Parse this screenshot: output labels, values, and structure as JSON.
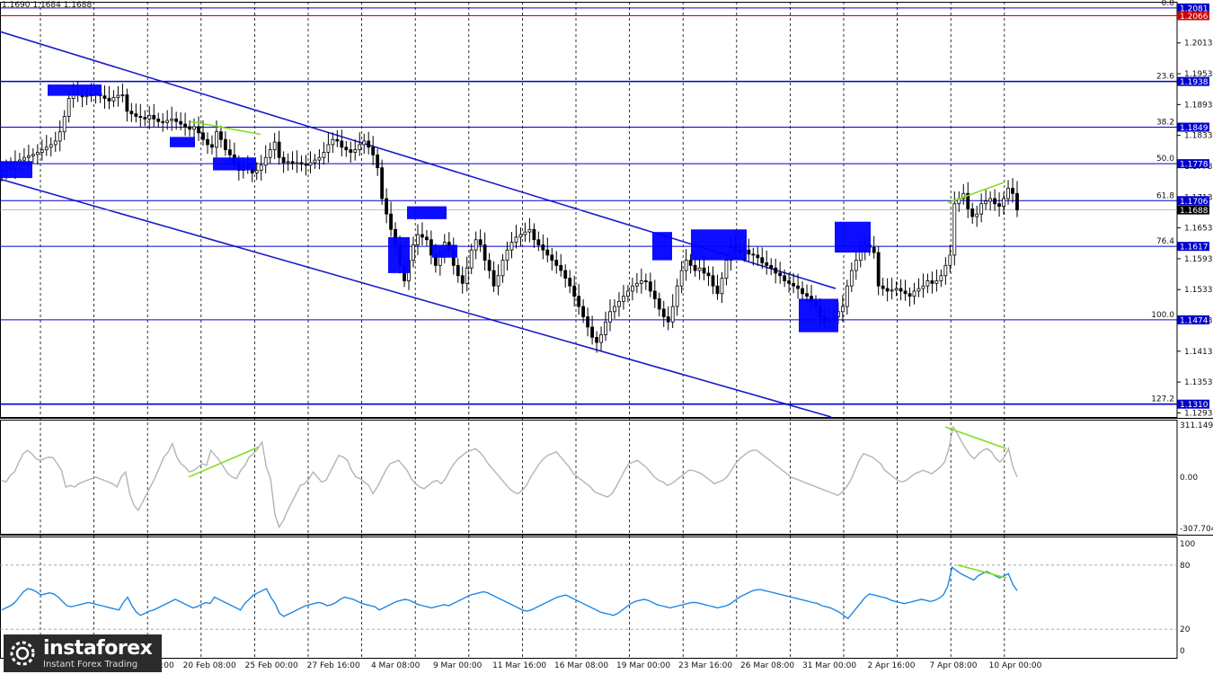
{
  "header": {
    "ohlc": "1.1690 1.1684 1.1688"
  },
  "brand": {
    "name": "instaforex",
    "tagline": "Instant Forex Trading",
    "logo_icon": "gear-logo-icon"
  },
  "colors": {
    "level": "#0000cc",
    "channel": "#1a1acc",
    "box": "#0000ff",
    "divergence": "#7fe020",
    "cci": "#b4b4b4",
    "rsi": "#1e88e5",
    "red_line": "#cc0000",
    "grid": "#000000"
  },
  "chart_data": [
    {
      "type": "candlestick",
      "title": "",
      "x_labels": [
        "17 Feb 16:00",
        "20 Feb 08:00",
        "25 Feb 00:00",
        "27 Feb 16:00",
        "4 Mar 08:00",
        "9 Mar 00:00",
        "11 Mar 16:00",
        "16 Mar 08:00",
        "19 Mar 00:00",
        "23 Mar 16:00",
        "26 Mar 08:00",
        "31 Mar 00:00",
        "2 Apr 16:00",
        "7 Apr 08:00",
        "10 Apr 00:00"
      ],
      "y_ticks": [
        "1.2013",
        "1.1953",
        "1.1893",
        "1.1833",
        "1.1773",
        "1.1713",
        "1.1653",
        "1.1593",
        "1.1533",
        "1.1473",
        "1.1413",
        "1.1353",
        "1.1293"
      ],
      "ylim": [
        1.1285,
        1.2093
      ],
      "current_price": "1.1688",
      "fibo_levels": [
        {
          "ratio": "0.0",
          "price": "1.2081"
        },
        {
          "ratio": "",
          "price": "1.2066"
        },
        {
          "ratio": "23.6",
          "price": "1.1938"
        },
        {
          "ratio": "38.2",
          "price": "1.1849"
        },
        {
          "ratio": "50.0",
          "price": "1.1778"
        },
        {
          "ratio": "61.8",
          "price": "1.1706"
        },
        {
          "ratio": "76.4",
          "price": "1.1617"
        },
        {
          "ratio": "100.0",
          "price": "1.1474"
        },
        {
          "ratio": "127.2",
          "price": "1.1310"
        }
      ],
      "close_path": [
        1.1765,
        1.177,
        1.1768,
        1.178,
        1.1785,
        1.179,
        1.1793,
        1.1796,
        1.18,
        1.1805,
        1.181,
        1.1815,
        1.1822,
        1.184,
        1.187,
        1.1905,
        1.1915,
        1.1912,
        1.1908,
        1.191,
        1.1913,
        1.1915,
        1.191,
        1.1905,
        1.19,
        1.1907,
        1.1911,
        1.1912,
        1.188,
        1.1875,
        1.187,
        1.1868,
        1.1865,
        1.1872,
        1.1865,
        1.186,
        1.1858,
        1.1862,
        1.1865,
        1.186,
        1.1855,
        1.185,
        1.1845,
        1.185,
        1.1838,
        1.1825,
        1.1815,
        1.181,
        1.184,
        1.1825,
        1.1805,
        1.1795,
        1.178,
        1.1765,
        1.1772,
        1.177,
        1.176,
        1.1765,
        1.1775,
        1.179,
        1.1805,
        1.182,
        1.179,
        1.178,
        1.1782,
        1.1778,
        1.178,
        1.1777,
        1.1775,
        1.178,
        1.1785,
        1.179,
        1.18,
        1.1815,
        1.1825,
        1.1822,
        1.181,
        1.1805,
        1.18,
        1.1805,
        1.1815,
        1.1822,
        1.181,
        1.1795,
        1.177,
        1.171,
        1.168,
        1.165,
        1.162,
        1.158,
        1.155,
        1.159,
        1.162,
        1.164,
        1.1635,
        1.163,
        1.16,
        1.158,
        1.16,
        1.1625,
        1.161,
        1.158,
        1.156,
        1.1545,
        1.1575,
        1.161,
        1.163,
        1.162,
        1.159,
        1.157,
        1.154,
        1.156,
        1.159,
        1.161,
        1.1625,
        1.1635,
        1.164,
        1.1645,
        1.165,
        1.163,
        1.162,
        1.161,
        1.16,
        1.159,
        1.158,
        1.157,
        1.1555,
        1.154,
        1.152,
        1.15,
        1.148,
        1.146,
        1.144,
        1.143,
        1.1445,
        1.147,
        1.149,
        1.15,
        1.151,
        1.152,
        1.153,
        1.154,
        1.1545,
        1.155,
        1.1548,
        1.153,
        1.1515,
        1.1495,
        1.148,
        1.147,
        1.15,
        1.154,
        1.157,
        1.159,
        1.158,
        1.157,
        1.1575,
        1.1565,
        1.156,
        1.154,
        1.1525,
        1.1555,
        1.159,
        1.1615,
        1.161,
        1.1605,
        1.161,
        1.1602,
        1.16,
        1.1595,
        1.1585,
        1.158,
        1.1575,
        1.1565,
        1.156,
        1.155,
        1.1545,
        1.154,
        1.1535,
        1.1525,
        1.152,
        1.151,
        1.15,
        1.148,
        1.147,
        1.1475,
        1.148,
        1.149,
        1.15,
        1.154,
        1.157,
        1.159,
        1.161,
        1.162,
        1.1615,
        1.1605,
        1.154,
        1.1535,
        1.153,
        1.1532,
        1.1535,
        1.153,
        1.1525,
        1.152,
        1.153,
        1.1535,
        1.154,
        1.155,
        1.1545,
        1.155,
        1.156,
        1.158,
        1.16,
        1.17,
        1.171,
        1.172,
        1.169,
        1.1675,
        1.168,
        1.17,
        1.1705,
        1.171,
        1.17,
        1.1695,
        1.171,
        1.173,
        1.172,
        1.1688
      ]
    },
    {
      "type": "line",
      "name": "",
      "y_ticks": [
        "311.1497",
        "0.00",
        "-307.704"
      ],
      "ylim": [
        -307.704,
        311.1497
      ],
      "values": [
        -20,
        -30,
        10,
        30,
        90,
        140,
        160,
        140,
        110,
        100,
        110,
        120,
        115,
        80,
        40,
        -60,
        -50,
        -60,
        -40,
        -30,
        -20,
        -10,
        0,
        -10,
        -20,
        -30,
        -40,
        -60,
        0,
        30,
        -100,
        -170,
        -200,
        -150,
        -100,
        -50,
        0,
        60,
        120,
        150,
        200,
        120,
        80,
        60,
        30,
        40,
        60,
        80,
        70,
        160,
        130,
        100,
        60,
        20,
        0,
        -10,
        40,
        70,
        120,
        140,
        170,
        210,
        60,
        -10,
        -220,
        -300,
        -260,
        -200,
        -150,
        -100,
        -50,
        -40,
        -10,
        30,
        0,
        -30,
        -20,
        30,
        80,
        130,
        120,
        100,
        40,
        0,
        -10,
        -30,
        -50,
        -100,
        -60,
        -10,
        40,
        80,
        90,
        100,
        70,
        40,
        -10,
        -40,
        -60,
        -70,
        -50,
        -30,
        -20,
        -40,
        -10,
        40,
        80,
        110,
        130,
        150,
        160,
        170,
        150,
        120,
        80,
        50,
        20,
        -10,
        -40,
        -70,
        -90,
        -100,
        -80,
        -50,
        0,
        40,
        80,
        110,
        130,
        140,
        150,
        120,
        90,
        60,
        20,
        0,
        -20,
        -40,
        -60,
        -90,
        -100,
        -110,
        -120,
        -100,
        -60,
        -10,
        40,
        80,
        90,
        100,
        80,
        60,
        30,
        0,
        -20,
        -30,
        -50,
        -40,
        -20,
        0,
        20,
        40,
        40,
        30,
        20,
        0,
        -20,
        -40,
        -30,
        -20,
        0,
        40,
        80,
        110,
        130,
        150,
        160,
        160,
        140,
        120,
        100,
        80,
        60,
        40,
        20,
        0,
        -10,
        -20,
        -30,
        -40,
        -50,
        -60,
        -70,
        -80,
        -90,
        -100,
        -110,
        -90,
        -60,
        -20,
        40,
        100,
        140,
        130,
        120,
        100,
        80,
        40,
        20,
        0,
        -20,
        -30,
        -20,
        0,
        20,
        30,
        40,
        30,
        20,
        40,
        60,
        90,
        170,
        300,
        260,
        210,
        170,
        130,
        110,
        140,
        160,
        170,
        150,
        110,
        90,
        120,
        170,
        60,
        0
      ]
    },
    {
      "type": "line",
      "name": "",
      "y_ticks": [
        "100",
        "80",
        "20",
        "0"
      ],
      "ylim": [
        0,
        100
      ],
      "values": [
        38,
        40,
        42,
        45,
        50,
        55,
        58,
        57,
        55,
        52,
        53,
        54,
        53,
        50,
        46,
        42,
        41,
        42,
        43,
        44,
        45,
        44,
        43,
        42,
        41,
        40,
        39,
        38,
        45,
        50,
        42,
        36,
        33,
        35,
        37,
        38,
        40,
        42,
        44,
        46,
        48,
        46,
        44,
        42,
        40,
        41,
        43,
        45,
        44,
        50,
        48,
        46,
        44,
        42,
        40,
        38,
        44,
        48,
        52,
        54,
        56,
        58,
        50,
        44,
        35,
        32,
        34,
        36,
        38,
        40,
        42,
        43,
        44,
        45,
        44,
        42,
        43,
        45,
        48,
        50,
        49,
        48,
        46,
        44,
        43,
        42,
        41,
        38,
        40,
        42,
        44,
        46,
        47,
        48,
        47,
        45,
        43,
        42,
        41,
        40,
        41,
        42,
        43,
        42,
        44,
        46,
        48,
        50,
        52,
        53,
        54,
        55,
        54,
        52,
        50,
        48,
        46,
        44,
        42,
        40,
        38,
        37,
        38,
        40,
        42,
        44,
        46,
        48,
        50,
        51,
        52,
        50,
        48,
        46,
        44,
        42,
        40,
        38,
        36,
        35,
        34,
        33,
        35,
        38,
        41,
        44,
        46,
        47,
        48,
        47,
        45,
        43,
        42,
        41,
        40,
        41,
        42,
        43,
        44,
        45,
        45,
        44,
        43,
        42,
        41,
        40,
        41,
        42,
        44,
        47,
        50,
        52,
        54,
        56,
        57,
        57,
        56,
        55,
        54,
        53,
        52,
        51,
        50,
        49,
        48,
        47,
        46,
        45,
        44,
        42,
        41,
        40,
        38,
        36,
        33,
        30,
        35,
        40,
        45,
        50,
        53,
        52,
        51,
        50,
        49,
        47,
        46,
        45,
        44,
        45,
        46,
        47,
        48,
        47,
        46,
        47,
        49,
        52,
        60,
        78,
        75,
        72,
        70,
        68,
        66,
        70,
        72,
        74,
        72,
        70,
        68,
        70,
        72,
        62,
        56
      ]
    }
  ]
}
